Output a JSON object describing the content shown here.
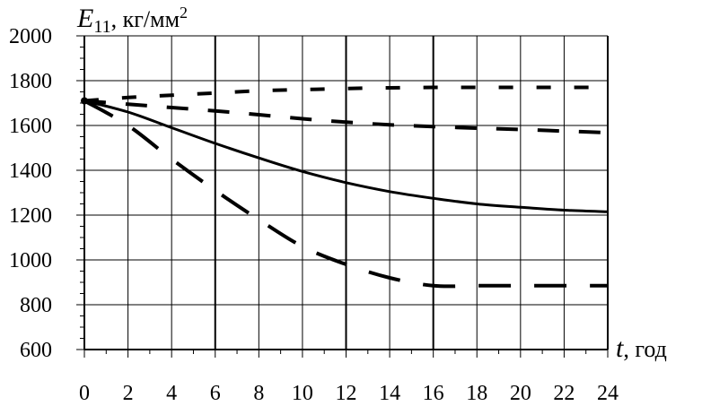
{
  "chart_data": {
    "type": "line",
    "title": "",
    "ylabel_symbol": "E",
    "ylabel_subscript": "11",
    "ylabel_unit": ", кг/мм",
    "ylabel_unit_sup": "2",
    "xlabel_symbol": "t",
    "xlabel_unit": ", год",
    "xlim": [
      0,
      24
    ],
    "ylim": [
      600,
      2000
    ],
    "x_ticks": [
      "0",
      "2",
      "4",
      "6",
      "8",
      "10",
      "12",
      "14",
      "16",
      "18",
      "20",
      "22",
      "24"
    ],
    "y_ticks": [
      "600",
      "800",
      "1000",
      "1200",
      "1400",
      "1600",
      "1800",
      "2000"
    ],
    "grid": true,
    "series": [
      {
        "style": "solid",
        "x": [
          0,
          2,
          4,
          6,
          8,
          10,
          12,
          14,
          16,
          18,
          20,
          22,
          24
        ],
        "y": [
          1710,
          1660,
          1590,
          1520,
          1455,
          1395,
          1345,
          1305,
          1275,
          1250,
          1235,
          1222,
          1215
        ]
      },
      {
        "style": "long-dash",
        "x": [
          0,
          2,
          4,
          6,
          8,
          10,
          12,
          14,
          16,
          18,
          20,
          22,
          24
        ],
        "y": [
          1710,
          1600,
          1450,
          1310,
          1180,
          1060,
          980,
          920,
          885,
          885,
          885,
          885,
          885
        ]
      },
      {
        "style": "medium-dash",
        "x": [
          0,
          2,
          4,
          6,
          8,
          10,
          12,
          14,
          16,
          18,
          20,
          22,
          24
        ],
        "y": [
          1710,
          1695,
          1680,
          1665,
          1648,
          1630,
          1615,
          1603,
          1595,
          1588,
          1582,
          1575,
          1568
        ]
      },
      {
        "style": "short-dash",
        "x": [
          0,
          2,
          4,
          6,
          8,
          10,
          12,
          14,
          16,
          18,
          20,
          22,
          24
        ],
        "y": [
          1710,
          1725,
          1735,
          1745,
          1755,
          1760,
          1765,
          1768,
          1770,
          1770,
          1770,
          1770,
          1770
        ]
      }
    ]
  }
}
